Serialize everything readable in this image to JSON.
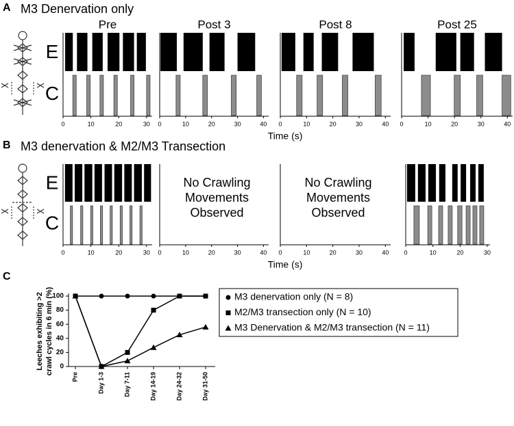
{
  "chart_data": [
    {
      "type": "ethogram",
      "label": "A",
      "title": "M3 Denervation only",
      "xlabel": "Time (s)",
      "series": [
        {
          "name": "E",
          "color": "#000000"
        },
        {
          "name": "C",
          "color": "#8c8c8c"
        }
      ],
      "plots": [
        {
          "title": "Pre",
          "xlim": [
            0,
            32
          ],
          "xticks": [
            0,
            10,
            20,
            30
          ],
          "intervals": [
            [
              [
                0.75,
                3.5
              ],
              [
                5,
                8.75
              ],
              [
                10.5,
                14.25
              ],
              [
                16,
                20.25
              ],
              [
                21.5,
                25.5
              ],
              [
                26.5,
                29.75
              ]
            ],
            [
              [
                3.5,
                4.75
              ],
              [
                8.5,
                9.75
              ],
              [
                13.25,
                14.5
              ],
              [
                18.25,
                19.5
              ],
              [
                24.25,
                25.5
              ],
              [
                30,
                31.25
              ]
            ]
          ]
        },
        {
          "title": "Post 3",
          "xlim": [
            0,
            42
          ],
          "xticks": [
            0,
            10,
            20,
            30,
            40
          ],
          "intervals": [
            [
              [
                0.3,
                6.6
              ],
              [
                9.2,
                16.6
              ],
              [
                19.2,
                25
              ],
              [
                30,
                36.8
              ]
            ],
            [
              [
                6.3,
                7.9
              ],
              [
                16.6,
                18.4
              ],
              [
                27.6,
                29.5
              ],
              [
                37.4,
                39.2
              ]
            ]
          ]
        },
        {
          "title": "Post 8",
          "xlim": [
            0,
            42
          ],
          "xticks": [
            0,
            10,
            20,
            30,
            40
          ],
          "intervals": [
            [
              [
                0.5,
                5.7
              ],
              [
                8.8,
                12.7
              ],
              [
                15.8,
                22
              ],
              [
                27.5,
                35.6
              ]
            ],
            [
              [
                6.2,
                8.3
              ],
              [
                14,
                16.1
              ],
              [
                23.6,
                25.7
              ],
              [
                36.1,
                38.4
              ]
            ]
          ]
        },
        {
          "title": "Post 25",
          "xlim": [
            0,
            42
          ],
          "xticks": [
            0,
            10,
            20,
            30,
            40
          ],
          "intervals": [
            [
              [
                0.8,
                4.9
              ],
              [
                12.9,
                20.7
              ],
              [
                22.2,
                27.4
              ],
              [
                31.5,
                38
              ]
            ],
            [
              [
                7.5,
                10.9
              ],
              [
                19.9,
                22.2
              ],
              [
                28.4,
                30.7
              ],
              [
                38,
                41.3
              ]
            ]
          ]
        }
      ]
    },
    {
      "type": "ethogram",
      "label": "B",
      "title": "M3 denervation & M2/M3 Transection",
      "xlabel": "Time (s)",
      "series": [
        {
          "name": "E",
          "color": "#000000"
        },
        {
          "name": "C",
          "color": "#8c8c8c"
        }
      ],
      "plots": [
        {
          "xlim": [
            0,
            32
          ],
          "xticks": [
            0,
            10,
            20,
            30
          ],
          "intervals": [
            [
              [
                0.7,
                3.4
              ],
              [
                4.2,
                6.9
              ],
              [
                7.7,
                10.5
              ],
              [
                11.3,
                14
              ],
              [
                14.9,
                17.6
              ],
              [
                18.4,
                21.2
              ],
              [
                22,
                24.7
              ],
              [
                25.5,
                28.3
              ],
              [
                29.1,
                31.6
              ]
            ],
            [
              [
                2.6,
                3.4
              ],
              [
                6.3,
                7.1
              ],
              [
                9.9,
                10.7
              ],
              [
                13.4,
                14.2
              ],
              [
                16.9,
                17.7
              ],
              [
                20.5,
                21.3
              ],
              [
                24,
                24.8
              ],
              [
                27.6,
                28.4
              ]
            ]
          ]
        },
        {
          "xlim": [
            0,
            42
          ],
          "xticks": [
            0,
            10,
            20,
            30,
            40
          ],
          "note": [
            "No Crawling",
            "Movements",
            "Observed"
          ]
        },
        {
          "xlim": [
            0,
            42
          ],
          "xticks": [
            0,
            10,
            20,
            30,
            40
          ],
          "note": [
            "No Crawling",
            "Movements",
            "Observed"
          ]
        },
        {
          "xlim": [
            0,
            31
          ],
          "xticks": [
            0,
            10,
            20,
            30
          ],
          "intervals": [
            [
              [
                0.5,
                3.5
              ],
              [
                4.5,
                7.3
              ],
              [
                8.3,
                11.1
              ],
              [
                12.3,
                14.6
              ],
              [
                17.1,
                19.1
              ],
              [
                20.2,
                22.2
              ],
              [
                23.7,
                25.7
              ],
              [
                26.7,
                28.7
              ]
            ],
            [
              [
                3,
                5
              ],
              [
                8.1,
                9.6
              ],
              [
                12.1,
                13.6
              ],
              [
                15.6,
                17.1
              ],
              [
                19.1,
                20.7
              ],
              [
                22.2,
                23.7
              ],
              [
                24.7,
                26.2
              ],
              [
                27.2,
                28.7
              ]
            ]
          ]
        }
      ]
    },
    {
      "type": "line",
      "label": "C",
      "ylabel": [
        "Leeches exhibiting >2",
        "crawl cycles in 6 min (%)"
      ],
      "categories": [
        "Pre",
        "Day 1-3",
        "Day 7-11",
        "Day 14-19",
        "Day 24-32",
        "Day 31-50"
      ],
      "ylim": [
        0,
        100
      ],
      "yticks": [
        0,
        20,
        40,
        60,
        80,
        100
      ],
      "legend": "right",
      "series": [
        {
          "name": "M3 denervation only (N = 8)",
          "color": "#000000",
          "marker": "circle",
          "values": [
            100,
            100,
            100,
            100,
            100,
            100
          ]
        },
        {
          "name": "M2/M3 transection only (N = 10)",
          "color": "#000000",
          "marker": "square",
          "values": [
            100,
            0,
            20,
            80,
            100,
            100
          ]
        },
        {
          "name": "M3 Denervation & M2/M3 transection (N = 11)",
          "color": "#000000",
          "marker": "triangle",
          "values": [
            100,
            0,
            8,
            27,
            45,
            56
          ]
        }
      ]
    }
  ]
}
